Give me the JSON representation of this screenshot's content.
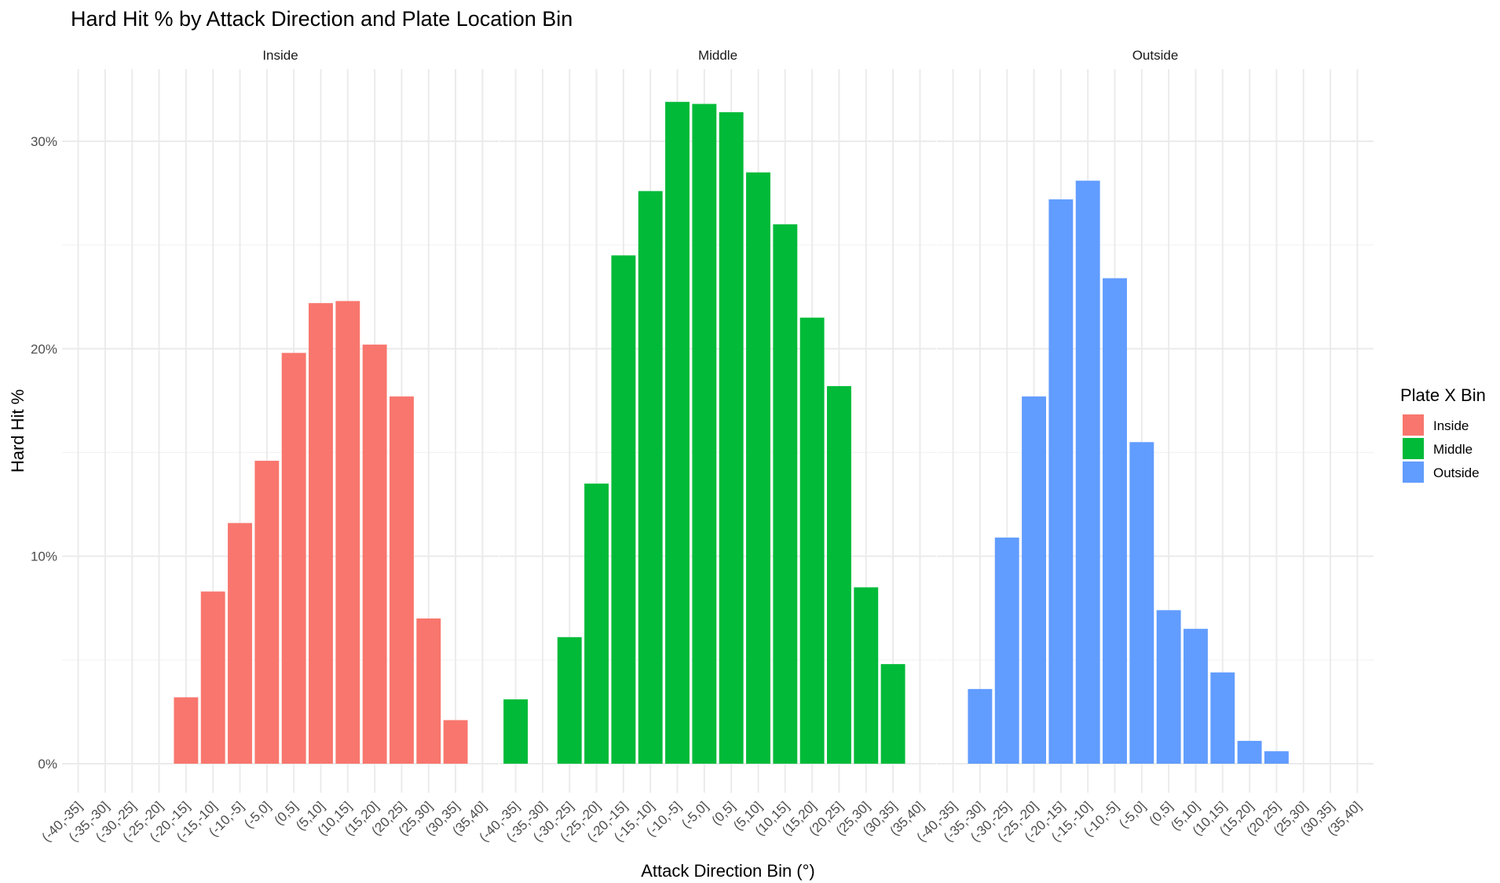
{
  "chart_data": {
    "type": "bar",
    "title": "Hard Hit % by Attack Direction and Plate Location Bin",
    "xlabel": "Attack Direction Bin (°)",
    "ylabel": "Hard Hit %",
    "ylim": [
      0,
      0.325
    ],
    "yticks": [
      {
        "value": 0,
        "label": "0%"
      },
      {
        "value": 0.1,
        "label": "10%"
      },
      {
        "value": 0.2,
        "label": "20%"
      },
      {
        "value": 0.3,
        "label": "30%"
      }
    ],
    "grid": true,
    "legend_title": "Plate X Bin",
    "legend_position": "right",
    "categories": [
      "(-40,-35]",
      "(-35,-30]",
      "(-30,-25]",
      "(-25,-20]",
      "(-20,-15]",
      "(-15,-10]",
      "(-10,-5]",
      "(-5,0]",
      "(0,5]",
      "(5,10]",
      "(10,15]",
      "(15,20]",
      "(20,25]",
      "(25,30]",
      "(30,35]",
      "(35,40]"
    ],
    "series": [
      {
        "name": "Inside",
        "color": "#F8766D",
        "values": [
          null,
          null,
          null,
          null,
          0.032,
          0.083,
          0.116,
          0.146,
          0.198,
          0.222,
          0.223,
          0.202,
          0.177,
          0.07,
          0.021,
          null
        ]
      },
      {
        "name": "Middle",
        "color": "#00BA38",
        "values": [
          0.031,
          null,
          0.061,
          0.135,
          0.245,
          0.276,
          0.319,
          0.318,
          0.314,
          0.285,
          0.26,
          0.215,
          0.182,
          0.085,
          0.048,
          null
        ]
      },
      {
        "name": "Outside",
        "color": "#619CFF",
        "values": [
          null,
          0.036,
          0.109,
          0.177,
          0.272,
          0.281,
          0.234,
          0.155,
          0.074,
          0.065,
          0.044,
          0.011,
          0.006,
          null,
          null,
          null
        ]
      }
    ]
  }
}
